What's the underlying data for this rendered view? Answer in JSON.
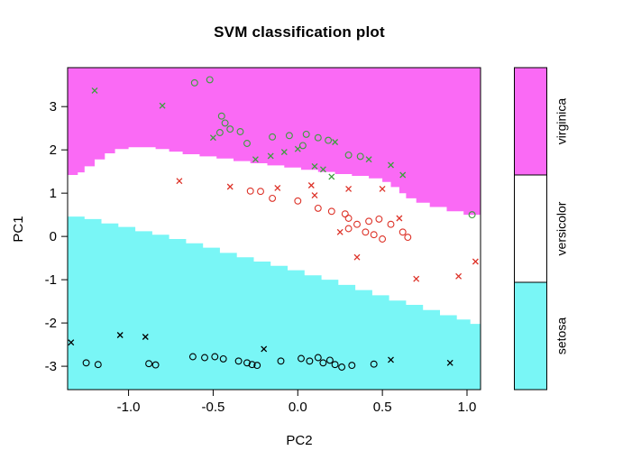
{
  "title": "SVM classification plot",
  "chart_data": {
    "type": "scatter",
    "title": "SVM classification plot",
    "xlabel": "PC2",
    "ylabel": "PC1",
    "xlim": [
      -1.36,
      1.08
    ],
    "ylim": [
      -3.54,
      3.9
    ],
    "grid": false,
    "x_ticks": [
      {
        "value": -1.0,
        "label": "-1.0"
      },
      {
        "value": -0.5,
        "label": "-0.5"
      },
      {
        "value": 0.0,
        "label": "0.0"
      },
      {
        "value": 0.5,
        "label": "0.5"
      },
      {
        "value": 1.0,
        "label": "1.0"
      }
    ],
    "y_ticks": [
      {
        "value": -3,
        "label": "-3"
      },
      {
        "value": -2,
        "label": "-2"
      },
      {
        "value": -1,
        "label": "-1"
      },
      {
        "value": 0,
        "label": "0"
      },
      {
        "value": 1,
        "label": "1"
      },
      {
        "value": 2,
        "label": "2"
      },
      {
        "value": 3,
        "label": "3"
      }
    ],
    "legend": {
      "position": "right-colorbar",
      "entries": [
        {
          "label": "virginica",
          "color": "#fa6af5"
        },
        {
          "label": "versicolor",
          "color": "#ffffff"
        },
        {
          "label": "setosa",
          "color": "#79f6f6"
        }
      ]
    },
    "marker_meaning": {
      "x": "support vector",
      "o": "data point"
    },
    "regions": [
      {
        "class": "virginica",
        "color": "#fa6af5",
        "side": "top",
        "lower_boundary": [
          [
            -1.36,
            1.42
          ],
          [
            -1.3,
            1.48
          ],
          [
            -1.26,
            1.62
          ],
          [
            -1.2,
            1.78
          ],
          [
            -1.14,
            1.92
          ],
          [
            -1.08,
            2.02
          ],
          [
            -1.0,
            2.06
          ],
          [
            -0.92,
            2.06
          ],
          [
            -0.84,
            2.02
          ],
          [
            -0.76,
            1.96
          ],
          [
            -0.68,
            1.9
          ],
          [
            -0.58,
            1.85
          ],
          [
            -0.48,
            1.8
          ],
          [
            -0.38,
            1.74
          ],
          [
            -0.28,
            1.69
          ],
          [
            -0.18,
            1.64
          ],
          [
            -0.08,
            1.59
          ],
          [
            0.02,
            1.54
          ],
          [
            0.12,
            1.49
          ],
          [
            0.22,
            1.44
          ],
          [
            0.32,
            1.4
          ],
          [
            0.42,
            1.34
          ],
          [
            0.5,
            1.26
          ],
          [
            0.55,
            1.14
          ],
          [
            0.6,
            1.0
          ],
          [
            0.64,
            0.88
          ],
          [
            0.7,
            0.78
          ],
          [
            0.78,
            0.68
          ],
          [
            0.88,
            0.58
          ],
          [
            0.98,
            0.5
          ],
          [
            1.08,
            0.44
          ]
        ]
      },
      {
        "class": "versicolor",
        "color": "#ffffff",
        "side": "middle band between the other two regions"
      },
      {
        "class": "setosa",
        "color": "#79f6f6",
        "side": "bottom",
        "upper_boundary": [
          [
            -1.36,
            0.46
          ],
          [
            -1.26,
            0.4
          ],
          [
            -1.16,
            0.3
          ],
          [
            -1.06,
            0.22
          ],
          [
            -0.96,
            0.12
          ],
          [
            -0.86,
            0.04
          ],
          [
            -0.76,
            -0.06
          ],
          [
            -0.66,
            -0.16
          ],
          [
            -0.56,
            -0.26
          ],
          [
            -0.46,
            -0.38
          ],
          [
            -0.36,
            -0.48
          ],
          [
            -0.26,
            -0.58
          ],
          [
            -0.16,
            -0.68
          ],
          [
            -0.06,
            -0.78
          ],
          [
            0.04,
            -0.9
          ],
          [
            0.14,
            -1.0
          ],
          [
            0.24,
            -1.12
          ],
          [
            0.34,
            -1.24
          ],
          [
            0.44,
            -1.36
          ],
          [
            0.54,
            -1.48
          ],
          [
            0.64,
            -1.58
          ],
          [
            0.74,
            -1.7
          ],
          [
            0.84,
            -1.82
          ],
          [
            0.94,
            -1.92
          ],
          [
            1.02,
            -2.02
          ],
          [
            1.08,
            -2.08
          ]
        ]
      }
    ],
    "series": [
      {
        "name": "virginica",
        "color": "#3c9e3c",
        "points": [
          [
            -1.2,
            3.37,
            "x"
          ],
          [
            -0.8,
            3.02,
            "x"
          ],
          [
            -0.5,
            2.28,
            "x"
          ],
          [
            -0.25,
            1.78,
            "x"
          ],
          [
            -0.16,
            1.86,
            "x"
          ],
          [
            0.0,
            2.02,
            "x"
          ],
          [
            -0.08,
            1.95,
            "x"
          ],
          [
            0.22,
            2.18,
            "x"
          ],
          [
            0.15,
            1.55,
            "x"
          ],
          [
            0.2,
            1.38,
            "x"
          ],
          [
            0.42,
            1.78,
            "x"
          ],
          [
            0.55,
            1.65,
            "x"
          ],
          [
            0.62,
            1.42,
            "x"
          ],
          [
            0.1,
            1.62,
            "x"
          ],
          [
            -0.61,
            3.55,
            "o"
          ],
          [
            -0.52,
            3.62,
            "o"
          ],
          [
            -0.45,
            2.78,
            "o"
          ],
          [
            -0.43,
            2.62,
            "o"
          ],
          [
            -0.4,
            2.48,
            "o"
          ],
          [
            -0.46,
            2.4,
            "o"
          ],
          [
            -0.34,
            2.42,
            "o"
          ],
          [
            -0.3,
            2.15,
            "o"
          ],
          [
            -0.15,
            2.3,
            "o"
          ],
          [
            -0.05,
            2.33,
            "o"
          ],
          [
            0.05,
            2.36,
            "o"
          ],
          [
            0.12,
            2.28,
            "o"
          ],
          [
            0.18,
            2.22,
            "o"
          ],
          [
            0.03,
            2.1,
            "o"
          ],
          [
            0.3,
            1.88,
            "o"
          ],
          [
            0.37,
            1.85,
            "o"
          ],
          [
            1.03,
            0.5,
            "o"
          ]
        ]
      },
      {
        "name": "versicolor",
        "color": "#dd3228",
        "points": [
          [
            -0.7,
            1.28,
            "x"
          ],
          [
            -0.4,
            1.15,
            "x"
          ],
          [
            -0.12,
            1.12,
            "x"
          ],
          [
            0.08,
            1.18,
            "x"
          ],
          [
            0.1,
            0.95,
            "x"
          ],
          [
            0.3,
            1.1,
            "x"
          ],
          [
            0.5,
            1.1,
            "x"
          ],
          [
            0.25,
            0.1,
            "x"
          ],
          [
            0.6,
            0.42,
            "x"
          ],
          [
            0.35,
            -0.48,
            "x"
          ],
          [
            0.7,
            -0.98,
            "x"
          ],
          [
            0.95,
            -0.92,
            "x"
          ],
          [
            1.05,
            -0.58,
            "x"
          ],
          [
            -0.28,
            1.05,
            "o"
          ],
          [
            -0.22,
            1.04,
            "o"
          ],
          [
            -0.15,
            0.88,
            "o"
          ],
          [
            0.0,
            0.82,
            "o"
          ],
          [
            0.12,
            0.65,
            "o"
          ],
          [
            0.2,
            0.58,
            "o"
          ],
          [
            0.28,
            0.52,
            "o"
          ],
          [
            0.3,
            0.42,
            "o"
          ],
          [
            0.35,
            0.28,
            "o"
          ],
          [
            0.42,
            0.35,
            "o"
          ],
          [
            0.48,
            0.4,
            "o"
          ],
          [
            0.3,
            0.18,
            "o"
          ],
          [
            0.4,
            0.1,
            "o"
          ],
          [
            0.45,
            0.04,
            "o"
          ],
          [
            0.55,
            0.28,
            "o"
          ],
          [
            0.62,
            0.1,
            "o"
          ],
          [
            0.65,
            -0.02,
            "o"
          ],
          [
            0.5,
            -0.06,
            "o"
          ]
        ]
      },
      {
        "name": "setosa",
        "color": "#000000",
        "points": [
          [
            -1.34,
            -2.45,
            "x"
          ],
          [
            -1.05,
            -2.28,
            "x"
          ],
          [
            -0.9,
            -2.32,
            "x"
          ],
          [
            -0.2,
            -2.6,
            "x"
          ],
          [
            0.55,
            -2.85,
            "x"
          ],
          [
            0.9,
            -2.92,
            "x"
          ],
          [
            -1.25,
            -2.92,
            "o"
          ],
          [
            -1.18,
            -2.96,
            "o"
          ],
          [
            -0.88,
            -2.94,
            "o"
          ],
          [
            -0.84,
            -2.97,
            "o"
          ],
          [
            -0.62,
            -2.78,
            "o"
          ],
          [
            -0.55,
            -2.8,
            "o"
          ],
          [
            -0.49,
            -2.78,
            "o"
          ],
          [
            -0.44,
            -2.83,
            "o"
          ],
          [
            -0.35,
            -2.88,
            "o"
          ],
          [
            -0.3,
            -2.92,
            "o"
          ],
          [
            -0.27,
            -2.96,
            "o"
          ],
          [
            -0.24,
            -2.98,
            "o"
          ],
          [
            -0.1,
            -2.88,
            "o"
          ],
          [
            0.02,
            -2.82,
            "o"
          ],
          [
            0.07,
            -2.88,
            "o"
          ],
          [
            0.12,
            -2.8,
            "o"
          ],
          [
            0.15,
            -2.92,
            "o"
          ],
          [
            0.19,
            -2.86,
            "o"
          ],
          [
            0.22,
            -2.96,
            "o"
          ],
          [
            0.26,
            -3.02,
            "o"
          ],
          [
            0.32,
            -2.98,
            "o"
          ],
          [
            0.45,
            -2.95,
            "o"
          ]
        ]
      }
    ]
  }
}
